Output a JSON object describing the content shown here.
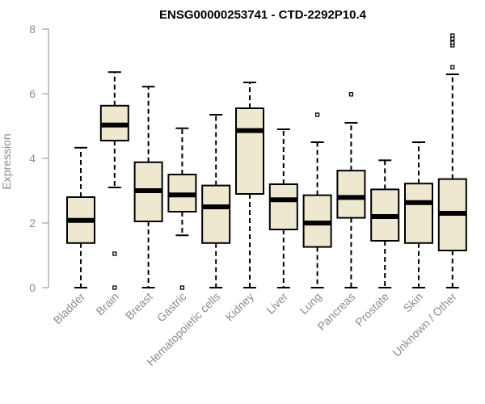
{
  "chart_data": {
    "type": "boxplot",
    "title": "ENSG00000253741 - CTD-2292P10.4",
    "ylabel": "Expression",
    "xlabel": "",
    "ylim": [
      0,
      8
    ],
    "yticks": [
      0,
      2,
      4,
      6,
      8
    ],
    "box_fill": "#efe8d0",
    "categories": [
      "Bladder",
      "Brain",
      "Breast",
      "Gastric",
      "Hematopoietic cells",
      "Kidney",
      "Liver",
      "Lung",
      "Pancreas",
      "Prostate",
      "Skin",
      "Unknown / Other"
    ],
    "boxes": [
      {
        "min": 0.0,
        "q1": 1.38,
        "median": 2.08,
        "q3": 2.8,
        "max": 4.33,
        "outliers": []
      },
      {
        "min": 3.1,
        "q1": 4.55,
        "median": 5.03,
        "q3": 5.63,
        "max": 6.67,
        "outliers": [
          1.05,
          0.0
        ]
      },
      {
        "min": 0.0,
        "q1": 2.05,
        "median": 3.0,
        "q3": 3.88,
        "max": 6.22,
        "outliers": []
      },
      {
        "min": 1.62,
        "q1": 2.35,
        "median": 2.87,
        "q3": 3.5,
        "max": 4.93,
        "outliers": [
          0.0
        ]
      },
      {
        "min": 0.0,
        "q1": 1.38,
        "median": 2.5,
        "q3": 3.16,
        "max": 5.35,
        "outliers": []
      },
      {
        "min": 0.0,
        "q1": 2.9,
        "median": 4.86,
        "q3": 5.55,
        "max": 6.35,
        "outliers": []
      },
      {
        "min": 0.0,
        "q1": 1.8,
        "median": 2.72,
        "q3": 3.2,
        "max": 4.9,
        "outliers": []
      },
      {
        "min": 0.0,
        "q1": 1.26,
        "median": 2.0,
        "q3": 2.86,
        "max": 4.5,
        "outliers": [
          5.35
        ]
      },
      {
        "min": 0.0,
        "q1": 2.16,
        "median": 2.79,
        "q3": 3.62,
        "max": 5.1,
        "outliers": [
          5.98
        ]
      },
      {
        "min": 0.0,
        "q1": 1.45,
        "median": 2.2,
        "q3": 3.04,
        "max": 3.94,
        "outliers": []
      },
      {
        "min": 0.0,
        "q1": 1.38,
        "median": 2.63,
        "q3": 3.22,
        "max": 4.5,
        "outliers": []
      },
      {
        "min": 0.0,
        "q1": 1.15,
        "median": 2.3,
        "q3": 3.36,
        "max": 6.6,
        "outliers": [
          6.82,
          7.5,
          7.58,
          7.7,
          7.8
        ]
      }
    ]
  }
}
